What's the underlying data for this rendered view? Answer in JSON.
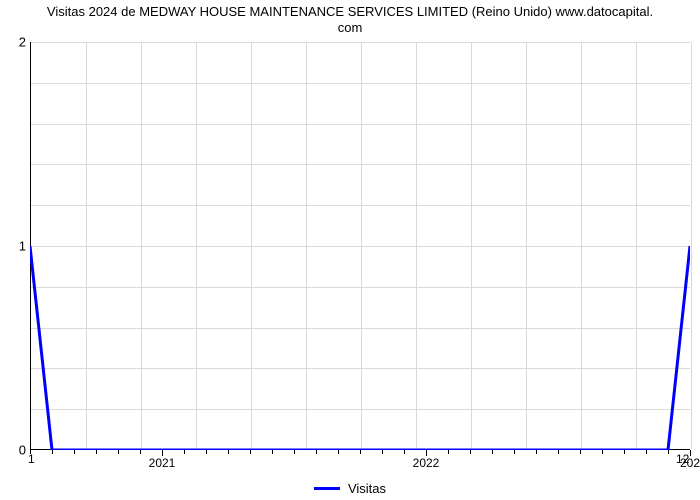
{
  "chart": {
    "type": "line",
    "title_line1": "Visitas 2024 de MEDWAY HOUSE MAINTENANCE SERVICES LIMITED (Reino Unido) www.datocapital.",
    "title_line2": "com",
    "title_fontsize": 13,
    "background_color": "#ffffff",
    "grid_color": "#d9d9d9",
    "line_color": "#0000ff",
    "line_width": 3,
    "y": {
      "min": 0,
      "max": 2,
      "ticks": [
        0,
        1,
        2
      ],
      "tick_labels": [
        "0",
        "1",
        "2"
      ],
      "tick_fontsize": 13,
      "grid_step_minor": 0.2
    },
    "x": {
      "domain_start": 0,
      "domain_end": 30,
      "left_label": "1",
      "right_label": "12",
      "month_columns": 12,
      "major_ticks": [
        {
          "pos": 6,
          "label": "2021"
        },
        {
          "pos": 18,
          "label": "2022"
        },
        {
          "pos": 30,
          "label": "202"
        }
      ],
      "minor_tick_step": 1,
      "tick_fontsize": 12
    },
    "series": {
      "name": "Visitas",
      "points": [
        {
          "x": 0,
          "y": 1.0
        },
        {
          "x": 1,
          "y": 0.0
        },
        {
          "x": 29,
          "y": 0.0
        },
        {
          "x": 30,
          "y": 1.0
        }
      ]
    },
    "legend": {
      "label": "Visitas",
      "position": "bottom-center",
      "swatch_color": "#0000ff",
      "fontsize": 13
    }
  }
}
